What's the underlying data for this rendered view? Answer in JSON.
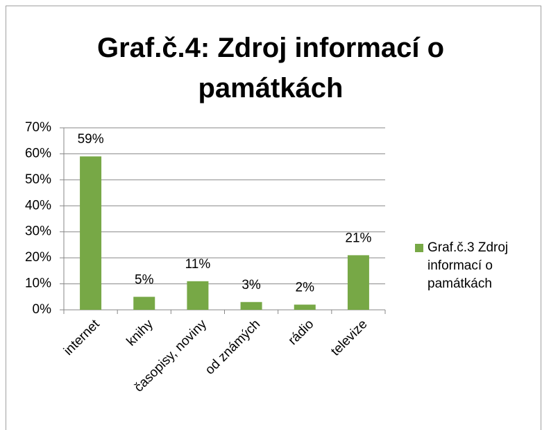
{
  "chart_data": {
    "type": "bar",
    "title": "Graf.č.4: Zdroj informací o památkách",
    "categories": [
      "internet",
      "knihy",
      "časopisy, noviny",
      "od známých",
      "rádio",
      "televize"
    ],
    "series": [
      {
        "name": "Graf.č.3 Zdroj informací o památkách",
        "color": "#77a846",
        "values": [
          59,
          5,
          11,
          3,
          2,
          21
        ],
        "value_labels": [
          "59%",
          "5%",
          "11%",
          "3%",
          "2%",
          "21%"
        ]
      }
    ],
    "ylim": [
      0,
      70
    ],
    "yticks": [
      {
        "value": 0,
        "label": "0%"
      },
      {
        "value": 10,
        "label": "10%"
      },
      {
        "value": 20,
        "label": "20%"
      },
      {
        "value": 30,
        "label": "30%"
      },
      {
        "value": 40,
        "label": "40%"
      },
      {
        "value": 50,
        "label": "50%"
      },
      {
        "value": 60,
        "label": "60%"
      },
      {
        "value": 70,
        "label": "70%"
      }
    ],
    "grid": true,
    "legend": "right"
  }
}
